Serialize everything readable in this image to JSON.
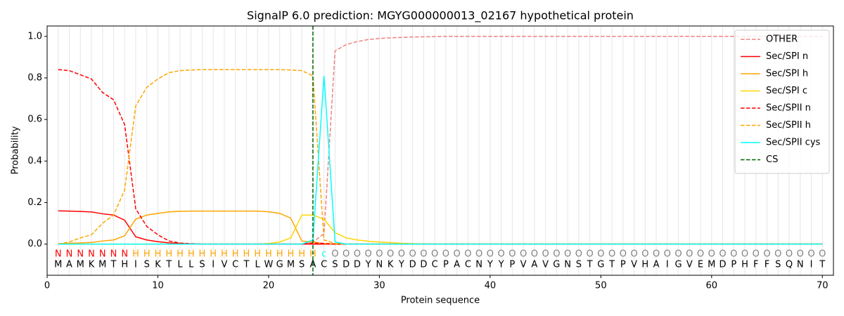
{
  "chart_data": {
    "type": "line",
    "title": "SignalP 6.0 prediction: MGYG000000013_02167 hypothetical protein",
    "xlabel": "Protein sequence",
    "ylabel": "Probability",
    "x": [
      1,
      2,
      3,
      4,
      5,
      6,
      7,
      8,
      9,
      10,
      11,
      12,
      13,
      14,
      15,
      16,
      17,
      18,
      19,
      20,
      21,
      22,
      23,
      24,
      25,
      26,
      27,
      28,
      29,
      30,
      31,
      32,
      33,
      34,
      35,
      36,
      37,
      38,
      39,
      40,
      41,
      42,
      43,
      44,
      45,
      46,
      47,
      48,
      49,
      50,
      51,
      52,
      53,
      54,
      55,
      56,
      57,
      58,
      59,
      60,
      61,
      62,
      63,
      64,
      65,
      66,
      67,
      68,
      69,
      70
    ],
    "sequence": [
      "M",
      "A",
      "M",
      "K",
      "M",
      "T",
      "H",
      "I",
      "S",
      "K",
      "T",
      "L",
      "L",
      "S",
      "I",
      "V",
      "C",
      "T",
      "L",
      "W",
      "G",
      "M",
      "S",
      "A",
      "C",
      "S",
      "D",
      "D",
      "Y",
      "N",
      "K",
      "Y",
      "D",
      "D",
      "C",
      "P",
      "A",
      "C",
      "N",
      "Y",
      "Y",
      "P",
      "V",
      "A",
      "V",
      "G",
      "N",
      "S",
      "T",
      "G",
      "T",
      "P",
      "V",
      "H",
      "A",
      "I",
      "G",
      "V",
      "E",
      "M",
      "D",
      "P",
      "H",
      "F",
      "F",
      "S",
      "Q",
      "N",
      "I",
      "T"
    ],
    "annotations": [
      "N",
      "N",
      "N",
      "N",
      "N",
      "N",
      "N",
      "H",
      "H",
      "H",
      "H",
      "H",
      "H",
      "H",
      "H",
      "H",
      "H",
      "H",
      "H",
      "H",
      "H",
      "H",
      "H",
      "H",
      "c",
      "O",
      "O",
      "O",
      "O",
      "O",
      "O",
      "O",
      "O",
      "O",
      "O",
      "O",
      "O",
      "O",
      "O",
      "O",
      "O",
      "O",
      "O",
      "O",
      "O",
      "O",
      "O",
      "O",
      "O",
      "O",
      "O",
      "O",
      "O",
      "O",
      "O",
      "O",
      "O",
      "O",
      "O",
      "O",
      "O",
      "O",
      "O",
      "O",
      "O",
      "O",
      "O",
      "O",
      "O",
      "O"
    ],
    "annotation_colors": {
      "N": "#ff0000",
      "H": "#ffa500",
      "c": "#00ffff",
      "O": "#808080"
    },
    "series": [
      {
        "name": "OTHER",
        "color": "#f08080",
        "dashed": true,
        "values": [
          0,
          0,
          0,
          0,
          0,
          0,
          0,
          0,
          0,
          0,
          0,
          0,
          0,
          0,
          0,
          0,
          0,
          0,
          0,
          0,
          0,
          0,
          0,
          0.01,
          0.05,
          0.93,
          0.96,
          0.975,
          0.985,
          0.99,
          0.993,
          0.995,
          0.997,
          0.998,
          0.999,
          1,
          1,
          1,
          1,
          1,
          1,
          1,
          1,
          1,
          1,
          1,
          1,
          1,
          1,
          1,
          1,
          1,
          1,
          1,
          1,
          1,
          1,
          1,
          1,
          1,
          1,
          1,
          1,
          1,
          1,
          1,
          1,
          1,
          1,
          1
        ]
      },
      {
        "name": "Sec/SPI n",
        "color": "#ff0000",
        "dashed": false,
        "values": [
          0.16,
          0.159,
          0.157,
          0.155,
          0.146,
          0.14,
          0.115,
          0.035,
          0.02,
          0.012,
          0.006,
          0.003,
          0.001,
          0,
          0,
          0,
          0,
          0,
          0,
          0,
          0,
          0,
          0,
          0,
          0,
          0,
          0,
          0,
          0,
          0,
          0,
          0,
          0,
          0,
          0,
          0,
          0,
          0,
          0,
          0,
          0,
          0,
          0,
          0,
          0,
          0,
          0,
          0,
          0,
          0,
          0,
          0,
          0,
          0,
          0,
          0,
          0,
          0,
          0,
          0,
          0,
          0,
          0,
          0,
          0,
          0,
          0,
          0,
          0,
          0
        ]
      },
      {
        "name": "Sec/SPI h",
        "color": "#ffa500",
        "dashed": false,
        "values": [
          0.002,
          0.004,
          0.006,
          0.008,
          0.015,
          0.02,
          0.04,
          0.12,
          0.14,
          0.148,
          0.155,
          0.158,
          0.159,
          0.159,
          0.159,
          0.159,
          0.159,
          0.159,
          0.159,
          0.156,
          0.148,
          0.125,
          0.015,
          0.01,
          0.003,
          0,
          0,
          0,
          0,
          0,
          0,
          0,
          0,
          0,
          0,
          0,
          0,
          0,
          0,
          0,
          0,
          0,
          0,
          0,
          0,
          0,
          0,
          0,
          0,
          0,
          0,
          0,
          0,
          0,
          0,
          0,
          0,
          0,
          0,
          0,
          0,
          0,
          0,
          0,
          0,
          0,
          0,
          0,
          0,
          0
        ]
      },
      {
        "name": "Sec/SPI c",
        "color": "#ffd700",
        "dashed": false,
        "values": [
          0,
          0,
          0,
          0,
          0,
          0,
          0,
          0,
          0,
          0,
          0,
          0,
          0,
          0,
          0,
          0,
          0,
          0,
          0,
          0.003,
          0.01,
          0.03,
          0.14,
          0.14,
          0.12,
          0.055,
          0.03,
          0.02,
          0.014,
          0.01,
          0.007,
          0.004,
          0.002,
          0.001,
          0,
          0,
          0,
          0,
          0,
          0,
          0,
          0,
          0,
          0,
          0,
          0,
          0,
          0,
          0,
          0,
          0,
          0,
          0,
          0,
          0,
          0,
          0,
          0,
          0,
          0,
          0,
          0,
          0,
          0,
          0,
          0,
          0,
          0,
          0,
          0
        ]
      },
      {
        "name": "Sec/SPII n",
        "color": "#ff0000",
        "dashed": true,
        "values": [
          0.84,
          0.835,
          0.815,
          0.795,
          0.73,
          0.695,
          0.575,
          0.17,
          0.085,
          0.045,
          0.015,
          0.005,
          0.002,
          0,
          0,
          0,
          0,
          0,
          0,
          0,
          0,
          0,
          0,
          0.005,
          0.003,
          0,
          0,
          0,
          0,
          0,
          0,
          0,
          0,
          0,
          0,
          0,
          0,
          0,
          0,
          0,
          0,
          0,
          0,
          0,
          0,
          0,
          0,
          0,
          0,
          0,
          0,
          0,
          0,
          0,
          0,
          0,
          0,
          0,
          0,
          0,
          0,
          0,
          0,
          0,
          0,
          0,
          0,
          0,
          0,
          0
        ]
      },
      {
        "name": "Sec/SPII h",
        "color": "#ffa500",
        "dashed": true,
        "values": [
          0,
          0.01,
          0.03,
          0.045,
          0.1,
          0.14,
          0.26,
          0.665,
          0.755,
          0.795,
          0.825,
          0.835,
          0.838,
          0.84,
          0.84,
          0.84,
          0.84,
          0.84,
          0.84,
          0.84,
          0.84,
          0.838,
          0.835,
          0.81,
          0.02,
          0.003,
          0,
          0,
          0,
          0,
          0,
          0,
          0,
          0,
          0,
          0,
          0,
          0,
          0,
          0,
          0,
          0,
          0,
          0,
          0,
          0,
          0,
          0,
          0,
          0,
          0,
          0,
          0,
          0,
          0,
          0,
          0,
          0,
          0,
          0,
          0,
          0,
          0,
          0,
          0,
          0,
          0,
          0,
          0,
          0
        ]
      },
      {
        "name": "Sec/SPII cys",
        "color": "#00ffff",
        "dashed": false,
        "values": [
          0,
          0,
          0,
          0,
          0,
          0,
          0,
          0,
          0,
          0,
          0,
          0,
          0,
          0,
          0,
          0,
          0,
          0,
          0,
          0,
          0,
          0,
          0,
          0.02,
          0.81,
          0.01,
          0,
          0,
          0,
          0,
          0,
          0,
          0,
          0,
          0,
          0,
          0,
          0,
          0,
          0,
          0,
          0,
          0,
          0,
          0,
          0,
          0,
          0,
          0,
          0,
          0,
          0,
          0,
          0,
          0,
          0,
          0,
          0,
          0,
          0,
          0,
          0,
          0,
          0,
          0,
          0,
          0,
          0,
          0,
          0
        ]
      }
    ],
    "cs": {
      "name": "CS",
      "color": "#006400",
      "x": 24
    },
    "xlim": [
      0,
      71
    ],
    "xticks": [
      0,
      10,
      20,
      30,
      40,
      50,
      60,
      70
    ],
    "ylim": [
      -0.15,
      1.05
    ],
    "yticks": [
      {
        "value": 0,
        "label": "0.0"
      },
      0.2,
      0.4,
      0.6,
      0.8,
      {
        "value": 1,
        "label": "1.0"
      }
    ],
    "grid": true,
    "legend": "upper right"
  }
}
